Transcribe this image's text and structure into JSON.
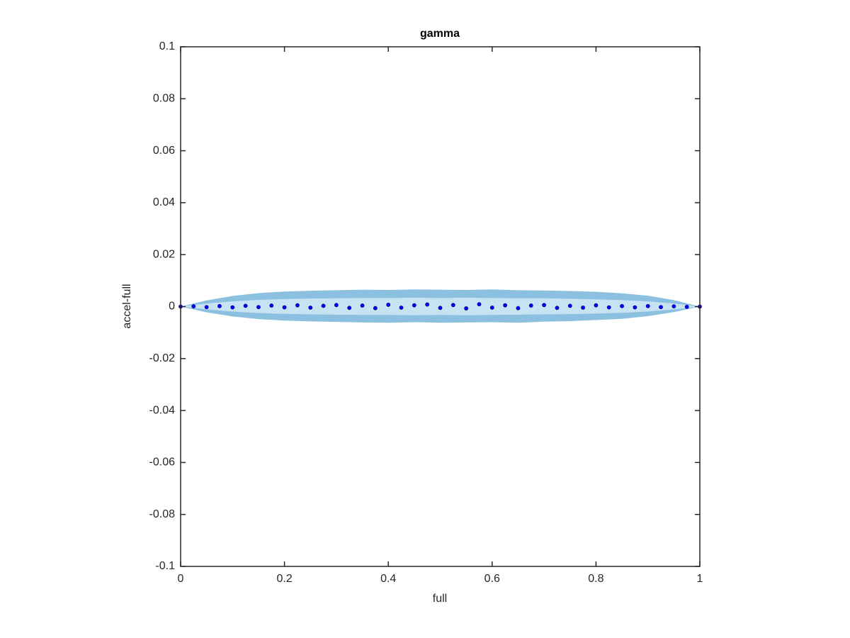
{
  "chart_data": {
    "type": "scatter",
    "title": "gamma",
    "x_label": "full",
    "y_label": "accel-full",
    "xlim": [
      0,
      1
    ],
    "ylim": [
      -0.1,
      0.1
    ],
    "xticks": [
      0,
      0.2,
      0.4,
      0.6,
      0.8,
      1
    ],
    "yticks": [
      -0.1,
      -0.08,
      -0.06,
      -0.04,
      -0.02,
      0,
      0.02,
      0.04,
      0.06,
      0.08,
      0.1
    ],
    "grid": false,
    "bands": [
      {
        "color": "#8cc0e0",
        "x": [
          0,
          0.05,
          0.1,
          0.15,
          0.2,
          0.25,
          0.3,
          0.35,
          0.4,
          0.45,
          0.5,
          0.55,
          0.6,
          0.65,
          0.7,
          0.75,
          0.8,
          0.85,
          0.9,
          0.95,
          1
        ],
        "upper": [
          0,
          0.0024,
          0.0041,
          0.0052,
          0.0058,
          0.0061,
          0.0063,
          0.0065,
          0.0064,
          0.0066,
          0.0065,
          0.0064,
          0.0066,
          0.0063,
          0.0062,
          0.006,
          0.0057,
          0.0051,
          0.0042,
          0.0025,
          0
        ],
        "lower": [
          0,
          -0.0022,
          -0.0038,
          -0.0048,
          -0.0054,
          -0.0057,
          -0.0059,
          -0.0061,
          -0.0062,
          -0.006,
          -0.0062,
          -0.0061,
          -0.006,
          -0.0062,
          -0.0058,
          -0.0056,
          -0.0052,
          -0.0047,
          -0.0037,
          -0.0021,
          0
        ]
      },
      {
        "color": "#c7e2f3",
        "x": [
          0,
          0.05,
          0.1,
          0.15,
          0.2,
          0.25,
          0.3,
          0.35,
          0.4,
          0.45,
          0.5,
          0.55,
          0.6,
          0.65,
          0.7,
          0.75,
          0.8,
          0.85,
          0.9,
          0.95,
          1
        ],
        "upper": [
          0,
          0.0012,
          0.002,
          0.0026,
          0.0029,
          0.0031,
          0.0032,
          0.0033,
          0.0033,
          0.0034,
          0.0033,
          0.0034,
          0.0033,
          0.0032,
          0.0032,
          0.003,
          0.0028,
          0.0025,
          0.002,
          0.0012,
          0
        ],
        "lower": [
          0,
          -0.0011,
          -0.0019,
          -0.0025,
          -0.0028,
          -0.003,
          -0.0031,
          -0.0032,
          -0.0032,
          -0.0033,
          -0.0032,
          -0.0033,
          -0.0032,
          -0.0031,
          -0.003,
          -0.0029,
          -0.0027,
          -0.0024,
          -0.0019,
          -0.0011,
          0
        ]
      }
    ],
    "points": {
      "color": "#0000ff",
      "x": [
        0,
        0.025,
        0.05,
        0.075,
        0.1,
        0.125,
        0.15,
        0.175,
        0.2,
        0.225,
        0.25,
        0.275,
        0.3,
        0.325,
        0.35,
        0.375,
        0.4,
        0.425,
        0.45,
        0.475,
        0.5,
        0.525,
        0.55,
        0.575,
        0.6,
        0.625,
        0.65,
        0.675,
        0.7,
        0.725,
        0.75,
        0.775,
        0.8,
        0.825,
        0.85,
        0.875,
        0.9,
        0.925,
        0.95,
        0.975,
        1
      ],
      "y": [
        0,
        0.0001,
        -0.0002,
        0.0002,
        -0.0003,
        0.0003,
        -0.0002,
        0.0004,
        -0.0003,
        0.0005,
        -0.0004,
        0.0003,
        0.0006,
        -0.0005,
        0.0004,
        -0.0006,
        0.0007,
        -0.0004,
        0.0005,
        0.0008,
        -0.0005,
        0.0006,
        -0.0007,
        0.0009,
        -0.0004,
        0.0005,
        -0.0006,
        0.0004,
        0.0006,
        -0.0005,
        0.0003,
        -0.0004,
        0.0005,
        -0.0003,
        0.0002,
        -0.0003,
        0.0002,
        -0.0002,
        0.0001,
        -0.0001,
        0
      ]
    }
  }
}
